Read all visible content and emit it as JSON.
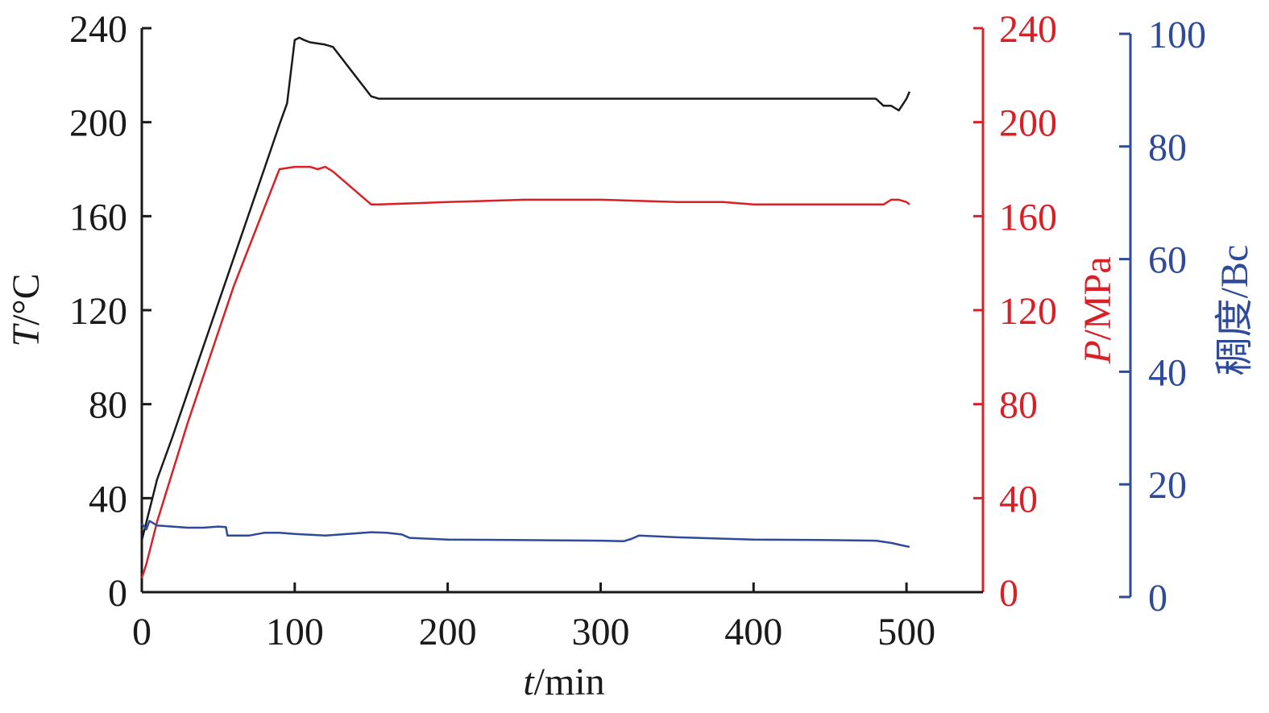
{
  "chart_data": {
    "type": "line",
    "x_axis": {
      "label_var": "t",
      "label_unit": "/min",
      "range": [
        0,
        550
      ],
      "ticks": [
        0,
        100,
        200,
        300,
        400,
        500
      ]
    },
    "y_left": {
      "label_var": "T",
      "label_unit": "/°C",
      "range": [
        0,
        240
      ],
      "ticks": [
        0,
        40,
        80,
        120,
        160,
        200,
        240
      ],
      "color": "#1a1a1a"
    },
    "y_right1": {
      "label_var": "P",
      "label_unit": "/MPa",
      "range": [
        0,
        240
      ],
      "ticks": [
        0,
        40,
        80,
        120,
        160,
        200,
        240
      ],
      "color": "#d92027"
    },
    "y_right2": {
      "label_text": "稠度/Bc",
      "range": [
        0,
        100
      ],
      "ticks": [
        0,
        20,
        40,
        60,
        80,
        100
      ],
      "color": "#2e4a9b"
    },
    "series": [
      {
        "key": "temperature",
        "axis": "y_left",
        "color": "#1a1a1a",
        "points": [
          [
            0,
            22
          ],
          [
            5,
            35
          ],
          [
            10,
            48
          ],
          [
            20,
            66
          ],
          [
            40,
            104
          ],
          [
            60,
            142
          ],
          [
            80,
            180
          ],
          [
            90,
            199
          ],
          [
            95,
            208
          ],
          [
            100,
            235
          ],
          [
            103,
            236
          ],
          [
            106,
            235
          ],
          [
            110,
            234
          ],
          [
            120,
            233
          ],
          [
            125,
            232
          ],
          [
            150,
            211
          ],
          [
            155,
            210
          ],
          [
            200,
            210
          ],
          [
            300,
            210
          ],
          [
            400,
            210
          ],
          [
            480,
            210
          ],
          [
            485,
            207
          ],
          [
            490,
            207
          ],
          [
            495,
            205
          ],
          [
            500,
            210
          ],
          [
            502,
            213
          ]
        ]
      },
      {
        "key": "pressure",
        "axis": "y_right1",
        "color": "#d92027",
        "points": [
          [
            0,
            6
          ],
          [
            3,
            12
          ],
          [
            10,
            30
          ],
          [
            30,
            72
          ],
          [
            60,
            130
          ],
          [
            90,
            180
          ],
          [
            100,
            181
          ],
          [
            110,
            181
          ],
          [
            115,
            180
          ],
          [
            120,
            181
          ],
          [
            125,
            179
          ],
          [
            150,
            165
          ],
          [
            155,
            165
          ],
          [
            200,
            166
          ],
          [
            250,
            167
          ],
          [
            300,
            167
          ],
          [
            350,
            166
          ],
          [
            380,
            166
          ],
          [
            400,
            165
          ],
          [
            450,
            165
          ],
          [
            480,
            165
          ],
          [
            485,
            165
          ],
          [
            490,
            167
          ],
          [
            495,
            167
          ],
          [
            500,
            166
          ],
          [
            502,
            165
          ]
        ]
      },
      {
        "key": "consistency",
        "axis": "y_right2",
        "color": "#2e4a9b",
        "points": [
          [
            0,
            13
          ],
          [
            3,
            12
          ],
          [
            5,
            13.5
          ],
          [
            10,
            12.7
          ],
          [
            20,
            12.5
          ],
          [
            30,
            12.3
          ],
          [
            40,
            12.3
          ],
          [
            50,
            12.5
          ],
          [
            55,
            12.4
          ],
          [
            56,
            10.9
          ],
          [
            70,
            10.9
          ],
          [
            80,
            11.4
          ],
          [
            90,
            11.4
          ],
          [
            100,
            11.2
          ],
          [
            120,
            10.9
          ],
          [
            150,
            11.5
          ],
          [
            160,
            11.4
          ],
          [
            170,
            11.1
          ],
          [
            175,
            10.5
          ],
          [
            200,
            10.2
          ],
          [
            250,
            10.1
          ],
          [
            300,
            10.0
          ],
          [
            315,
            9.9
          ],
          [
            320,
            10.3
          ],
          [
            325,
            10.9
          ],
          [
            350,
            10.6
          ],
          [
            400,
            10.2
          ],
          [
            450,
            10.1
          ],
          [
            480,
            10.0
          ],
          [
            490,
            9.6
          ],
          [
            500,
            9.0
          ],
          [
            502,
            8.9
          ]
        ]
      }
    ]
  }
}
